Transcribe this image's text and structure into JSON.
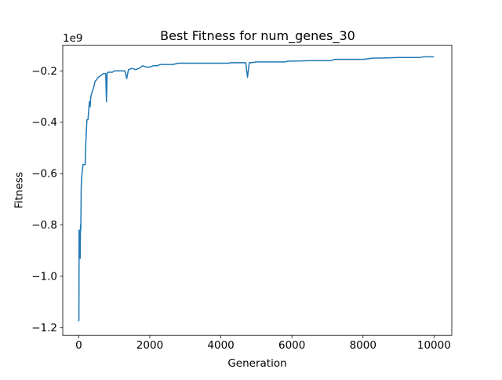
{
  "chart_data": {
    "type": "line",
    "title": "Best Fitness for num_genes_30",
    "xlabel": "Generation",
    "ylabel": "Fitness",
    "y_offset_label": "1e9",
    "xlim": [
      -450,
      10500
    ],
    "ylim": [
      -1.23,
      -0.1
    ],
    "x_ticks": [
      0,
      2000,
      4000,
      6000,
      8000,
      10000
    ],
    "x_tick_labels": [
      "0",
      "2000",
      "4000",
      "6000",
      "8000",
      "10000"
    ],
    "y_ticks": [
      -1.2,
      -1.0,
      -0.8,
      -0.6,
      -0.4,
      -0.2
    ],
    "y_tick_labels": [
      "−1.2",
      "−1.0",
      "−0.8",
      "−0.6",
      "−0.4",
      "−0.2"
    ],
    "grid": false,
    "legend": "none",
    "line_color": "#1f77b4",
    "series": [
      {
        "x": [
          0,
          5,
          10,
          20,
          30,
          40,
          50,
          55,
          60,
          70,
          80,
          90,
          100,
          120,
          150,
          180,
          200,
          230,
          260,
          300,
          320,
          340,
          380,
          420,
          460,
          500,
          550,
          600,
          650,
          700,
          760,
          780,
          800,
          820,
          850,
          900,
          950,
          1000,
          1100,
          1200,
          1300,
          1350,
          1400,
          1500,
          1600,
          1700,
          1800,
          1900,
          2000,
          2100,
          2200,
          2300,
          2400,
          2500,
          2650,
          2800,
          3000,
          3500,
          3900,
          4000,
          4100,
          4200,
          4300,
          4500,
          4700,
          4750,
          4800,
          4850,
          5000,
          5500,
          5800,
          5900,
          6000,
          6500,
          6700,
          7000,
          7100,
          7200,
          7500,
          8000,
          8300,
          8500,
          9000,
          9500,
          9600,
          9700,
          10000
        ],
        "y": [
          -1.175,
          -1.17,
          -0.82,
          -0.93,
          -0.82,
          -0.93,
          -0.8,
          -0.82,
          -0.8,
          -0.65,
          -0.62,
          -0.605,
          -0.59,
          -0.565,
          -0.565,
          -0.565,
          -0.48,
          -0.39,
          -0.39,
          -0.32,
          -0.34,
          -0.3,
          -0.28,
          -0.265,
          -0.24,
          -0.235,
          -0.225,
          -0.22,
          -0.215,
          -0.21,
          -0.21,
          -0.32,
          -0.21,
          -0.205,
          -0.205,
          -0.205,
          -0.205,
          -0.2,
          -0.2,
          -0.2,
          -0.2,
          -0.23,
          -0.195,
          -0.19,
          -0.195,
          -0.19,
          -0.18,
          -0.185,
          -0.185,
          -0.18,
          -0.18,
          -0.175,
          -0.175,
          -0.175,
          -0.175,
          -0.17,
          -0.17,
          -0.17,
          -0.17,
          -0.17,
          -0.17,
          -0.17,
          -0.168,
          -0.168,
          -0.168,
          -0.225,
          -0.168,
          -0.168,
          -0.165,
          -0.165,
          -0.165,
          -0.162,
          -0.162,
          -0.16,
          -0.16,
          -0.16,
          -0.16,
          -0.155,
          -0.155,
          -0.155,
          -0.15,
          -0.15,
          -0.148,
          -0.148,
          -0.148,
          -0.145,
          -0.145
        ]
      }
    ]
  }
}
